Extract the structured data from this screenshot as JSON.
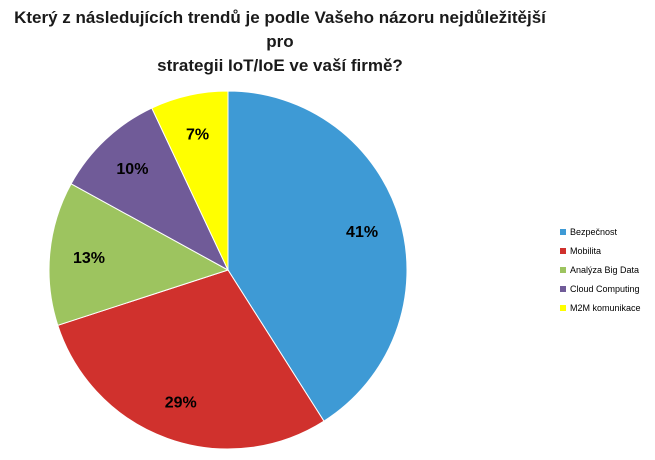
{
  "title_lines": [
    "Který z následujících trendů je podle Vašeho názoru nejdůležitější pro",
    "strategii IoT/IoE ve vaší firmě?"
  ],
  "chart_data": {
    "type": "pie",
    "title": "Který z následujících trendů je podle Vašeho názoru nejdůležitější pro strategii IoT/IoE ve vaší firmě?",
    "legend_position": "right",
    "series": [
      {
        "name": "Bezpečnost",
        "value": 41,
        "label": "41%",
        "color": "#3e9ad5"
      },
      {
        "name": "Mobilita",
        "value": 29,
        "label": "29%",
        "color": "#d0312d"
      },
      {
        "name": "Analýza Big Data",
        "value": 13,
        "label": "13%",
        "color": "#9dc45f"
      },
      {
        "name": "Cloud Computing",
        "value": 10,
        "label": "10%",
        "color": "#705b98"
      },
      {
        "name": "M2M komunikace",
        "value": 7,
        "label": "7%",
        "color": "#ffff00"
      }
    ]
  }
}
